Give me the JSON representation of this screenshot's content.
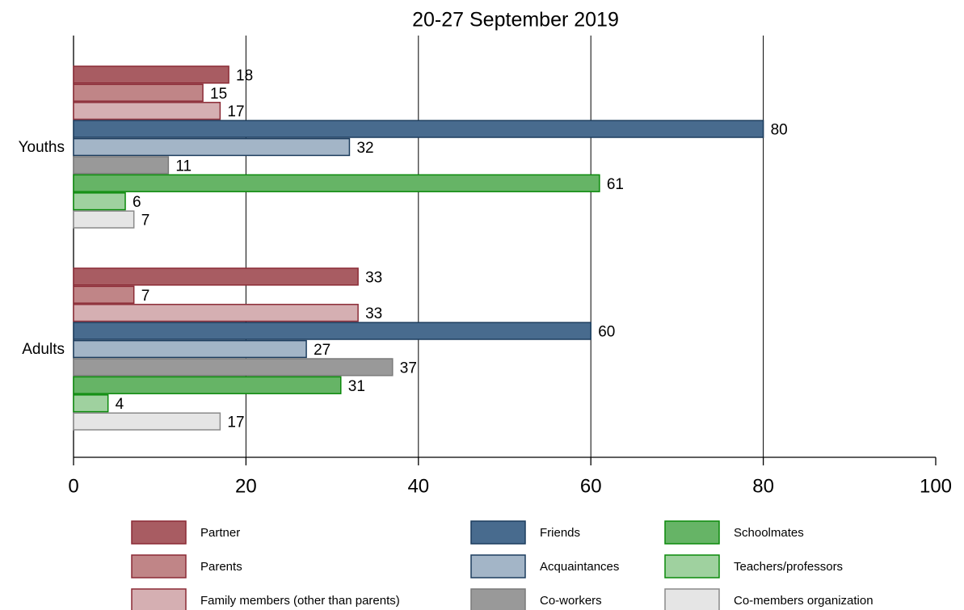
{
  "chart_data": {
    "type": "hbar",
    "title": "20-27 September 2019",
    "categories": [
      "Youths",
      "Adults"
    ],
    "series": [
      {
        "name": "Partner",
        "color": "#a85c62",
        "edge": "#8b2a35",
        "values": [
          18,
          33
        ]
      },
      {
        "name": "Parents",
        "color": "#c08587",
        "edge": "#8b2a35",
        "values": [
          15,
          7
        ]
      },
      {
        "name": "Family members (other than parents)",
        "color": "#d5afb2",
        "edge": "#8b2a35",
        "values": [
          17,
          33
        ]
      },
      {
        "name": "Friends",
        "color": "#486b8e",
        "edge": "#1c3d5e",
        "values": [
          80,
          60
        ]
      },
      {
        "name": "Acquaintances",
        "color": "#a3b5c7",
        "edge": "#1c3d5e",
        "values": [
          32,
          27
        ]
      },
      {
        "name": "Co-workers",
        "color": "#999999",
        "edge": "#7a7a7a",
        "values": [
          11,
          37
        ]
      },
      {
        "name": "Schoolmates",
        "color": "#66b466",
        "edge": "#0a8a0a",
        "values": [
          61,
          31
        ]
      },
      {
        "name": "Teachers/professors",
        "color": "#9fd19f",
        "edge": "#0a8a0a",
        "values": [
          6,
          4
        ]
      },
      {
        "name": "Co-members organization",
        "color": "#e5e5e5",
        "edge": "#8a8a8a",
        "values": [
          7,
          17
        ]
      }
    ],
    "xlim": [
      0,
      100
    ],
    "xticks": [
      0,
      20,
      40,
      60,
      80,
      100
    ],
    "grid": true
  }
}
